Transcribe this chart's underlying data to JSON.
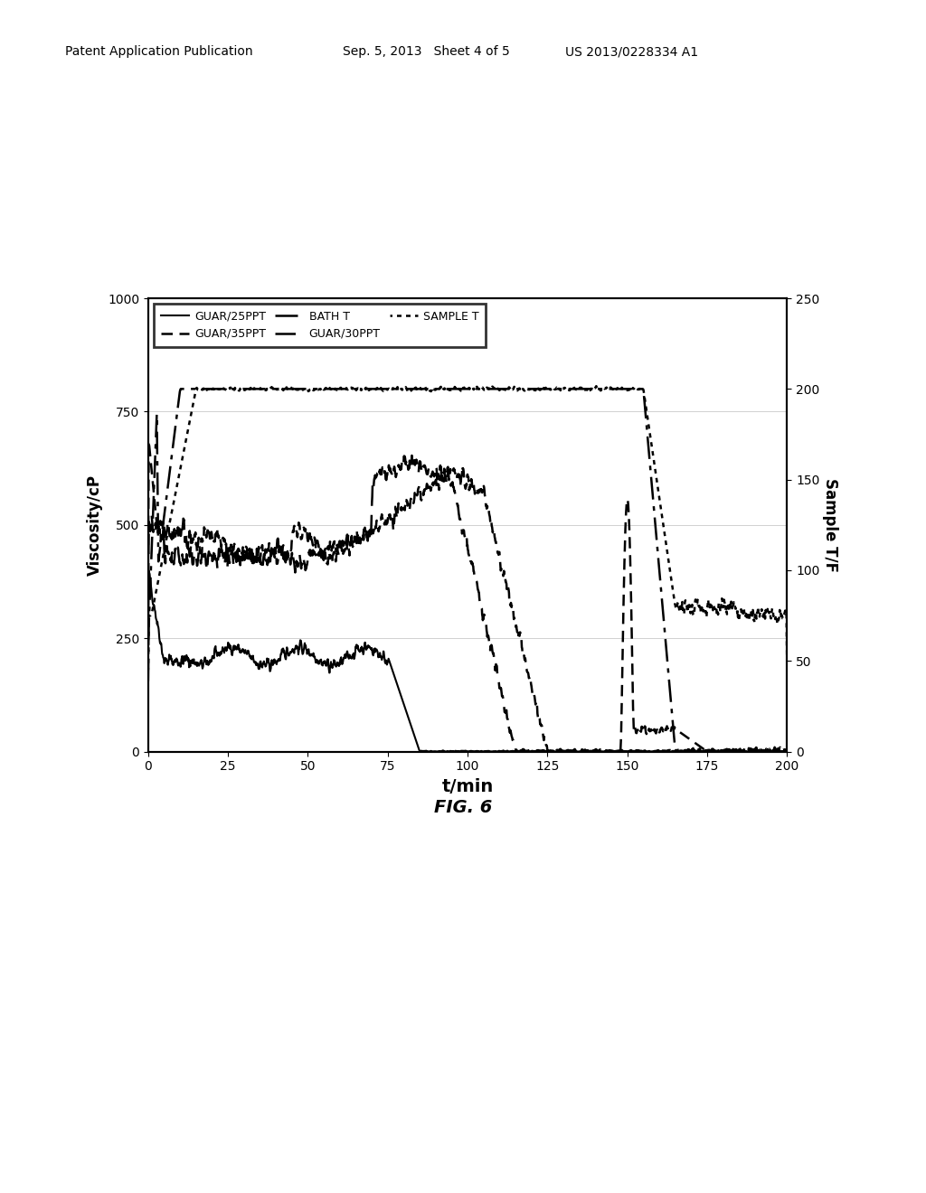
{
  "header_left": "Patent Application Publication",
  "header_mid": "Sep. 5, 2013   Sheet 4 of 5",
  "header_right": "US 2013/0228334 A1",
  "fig_label": "FIG. 6",
  "xlabel": "t/min",
  "ylabel_left": "Viscosity/cP",
  "ylabel_right": "Sample T/F",
  "xlim": [
    0,
    200
  ],
  "ylim_left": [
    0,
    1000
  ],
  "ylim_right": [
    0,
    250
  ],
  "xticks": [
    0,
    25,
    50,
    75,
    100,
    125,
    150,
    175,
    200
  ],
  "yticks_left": [
    0,
    250,
    500,
    750,
    1000
  ],
  "yticks_right": [
    0,
    50,
    100,
    150,
    200,
    250
  ],
  "background": "#ffffff"
}
